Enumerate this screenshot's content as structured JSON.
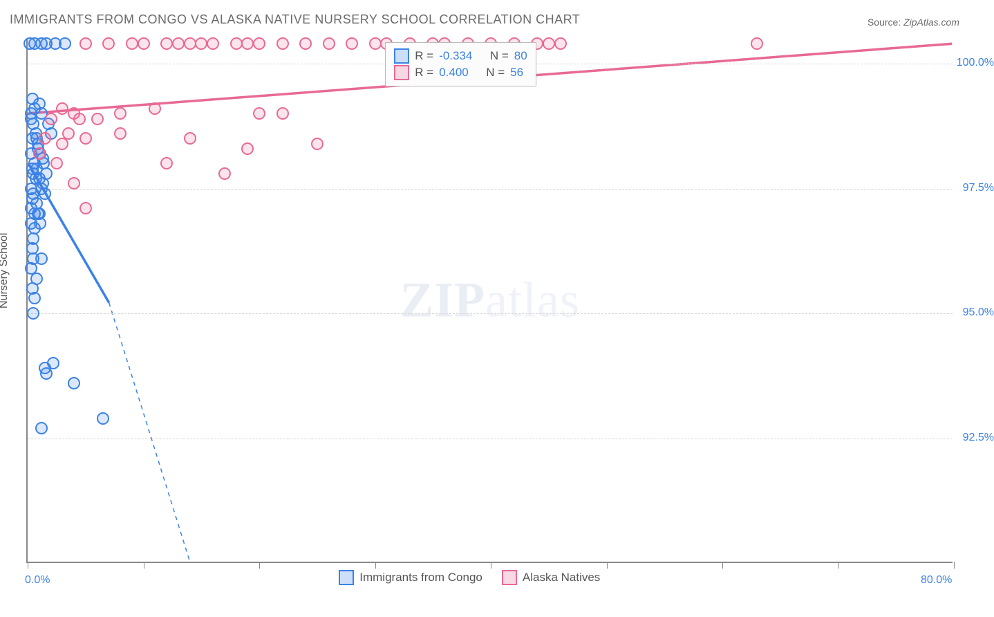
{
  "title": "IMMIGRANTS FROM CONGO VS ALASKA NATIVE NURSERY SCHOOL CORRELATION CHART",
  "source_label": "Source: ",
  "source_value": "ZipAtlas.com",
  "ylabel": "Nursery School",
  "watermark_zip": "ZIP",
  "watermark_atlas": "atlas",
  "chart": {
    "type": "scatter",
    "background_color": "#ffffff",
    "grid_color": "#d5d5d5",
    "grid_dash": true,
    "axis_color": "#888888",
    "text_color_axis": "#3b82e6",
    "marker_radius": 9,
    "marker_opacity": 0.18,
    "xlim": [
      0,
      80
    ],
    "ylim": [
      90,
      100.5
    ],
    "xticks": [
      0,
      10,
      20,
      30,
      40,
      50,
      60,
      70,
      80
    ],
    "xtick_labels_shown": {
      "0": "0.0%",
      "80": "80.0%"
    },
    "yticks": [
      92.5,
      95.0,
      97.5,
      100.0
    ],
    "ytick_labels": [
      "92.5%",
      "95.0%",
      "97.5%",
      "100.0%"
    ],
    "series": [
      {
        "name": "Immigrants from Congo",
        "color": "#3b82e6",
        "fill": "rgba(59,130,230,0.25)",
        "R": "-0.334",
        "N": "80",
        "trend": {
          "x1": 0,
          "y1": 98.0,
          "x2": 7.5,
          "y2": 95.0,
          "solid_until_x": 7.0
        },
        "points": [
          [
            0.2,
            100.4
          ],
          [
            0.6,
            100.4
          ],
          [
            1.2,
            100.4
          ],
          [
            1.6,
            100.4
          ],
          [
            2.4,
            100.4
          ],
          [
            3.2,
            100.4
          ],
          [
            0.3,
            99.0
          ],
          [
            0.5,
            98.8
          ],
          [
            0.4,
            98.5
          ],
          [
            0.3,
            98.2
          ],
          [
            0.6,
            98.0
          ],
          [
            0.5,
            97.8
          ],
          [
            0.3,
            97.5
          ],
          [
            0.4,
            97.3
          ],
          [
            0.6,
            97.0
          ],
          [
            0.3,
            96.8
          ],
          [
            0.5,
            96.5
          ],
          [
            0.4,
            96.3
          ],
          [
            0.5,
            96.1
          ],
          [
            0.3,
            95.9
          ],
          [
            0.8,
            95.7
          ],
          [
            0.4,
            95.5
          ],
          [
            0.6,
            95.3
          ],
          [
            0.5,
            95.0
          ],
          [
            0.7,
            98.6
          ],
          [
            0.9,
            98.4
          ],
          [
            1.1,
            98.2
          ],
          [
            0.8,
            97.9
          ],
          [
            1.0,
            97.7
          ],
          [
            1.2,
            97.5
          ],
          [
            0.9,
            97.0
          ],
          [
            1.1,
            96.8
          ],
          [
            1.4,
            98.0
          ],
          [
            1.6,
            97.8
          ],
          [
            1.3,
            97.6
          ],
          [
            1.5,
            97.4
          ],
          [
            1.0,
            99.2
          ],
          [
            1.2,
            99.0
          ],
          [
            1.8,
            98.8
          ],
          [
            2.0,
            98.6
          ],
          [
            0.4,
            97.9
          ],
          [
            0.7,
            97.7
          ],
          [
            0.9,
            98.3
          ],
          [
            1.3,
            98.1
          ],
          [
            2.2,
            94.0
          ],
          [
            1.5,
            93.9
          ],
          [
            1.6,
            93.8
          ],
          [
            4.0,
            93.6
          ],
          [
            6.5,
            92.9
          ],
          [
            1.2,
            92.7
          ],
          [
            0.3,
            97.1
          ],
          [
            0.5,
            97.4
          ],
          [
            0.8,
            97.2
          ],
          [
            1.0,
            97.0
          ],
          [
            0.6,
            96.7
          ],
          [
            1.2,
            96.1
          ],
          [
            0.3,
            98.9
          ],
          [
            0.4,
            99.3
          ],
          [
            0.6,
            99.1
          ],
          [
            0.8,
            98.5
          ]
        ]
      },
      {
        "name": "Alaska Natives",
        "color": "#e86a94",
        "fill": "rgba(232,106,148,0.25)",
        "R": "0.400",
        "N": "56",
        "trend": {
          "x1": 0,
          "y1": 99.0,
          "x2": 80,
          "y2": 100.4,
          "solid_until_x": 80
        },
        "points": [
          [
            5,
            100.4
          ],
          [
            7,
            100.4
          ],
          [
            9,
            100.4
          ],
          [
            10,
            100.4
          ],
          [
            12,
            100.4
          ],
          [
            13,
            100.4
          ],
          [
            14,
            100.4
          ],
          [
            15,
            100.4
          ],
          [
            16,
            100.4
          ],
          [
            18,
            100.4
          ],
          [
            19,
            100.4
          ],
          [
            20,
            100.4
          ],
          [
            22,
            100.4
          ],
          [
            24,
            100.4
          ],
          [
            26,
            100.4
          ],
          [
            28,
            100.4
          ],
          [
            30,
            100.4
          ],
          [
            31,
            100.4
          ],
          [
            33,
            100.4
          ],
          [
            35,
            100.4
          ],
          [
            36,
            100.4
          ],
          [
            38,
            100.4
          ],
          [
            40,
            100.4
          ],
          [
            42,
            100.4
          ],
          [
            44,
            100.4
          ],
          [
            45,
            100.4
          ],
          [
            46,
            100.4
          ],
          [
            63,
            100.4
          ],
          [
            3,
            99.1
          ],
          [
            4,
            99.0
          ],
          [
            6,
            98.9
          ],
          [
            8,
            99.0
          ],
          [
            11,
            99.1
          ],
          [
            20,
            99.0
          ],
          [
            22,
            99.0
          ],
          [
            3.5,
            98.6
          ],
          [
            5,
            98.5
          ],
          [
            8,
            98.6
          ],
          [
            14,
            98.5
          ],
          [
            19,
            98.3
          ],
          [
            25,
            98.4
          ],
          [
            12,
            98.0
          ],
          [
            17,
            97.8
          ],
          [
            4,
            97.6
          ],
          [
            5,
            97.1
          ],
          [
            1,
            98.2
          ],
          [
            1.5,
            98.5
          ],
          [
            2,
            98.9
          ],
          [
            2.5,
            98.0
          ],
          [
            3,
            98.4
          ],
          [
            4.5,
            98.9
          ]
        ]
      }
    ]
  },
  "legend_top": {
    "r_label": "R =",
    "n_label": "N ="
  },
  "legend_bottom": {
    "items": [
      "Immigrants from Congo",
      "Alaska Natives"
    ]
  }
}
